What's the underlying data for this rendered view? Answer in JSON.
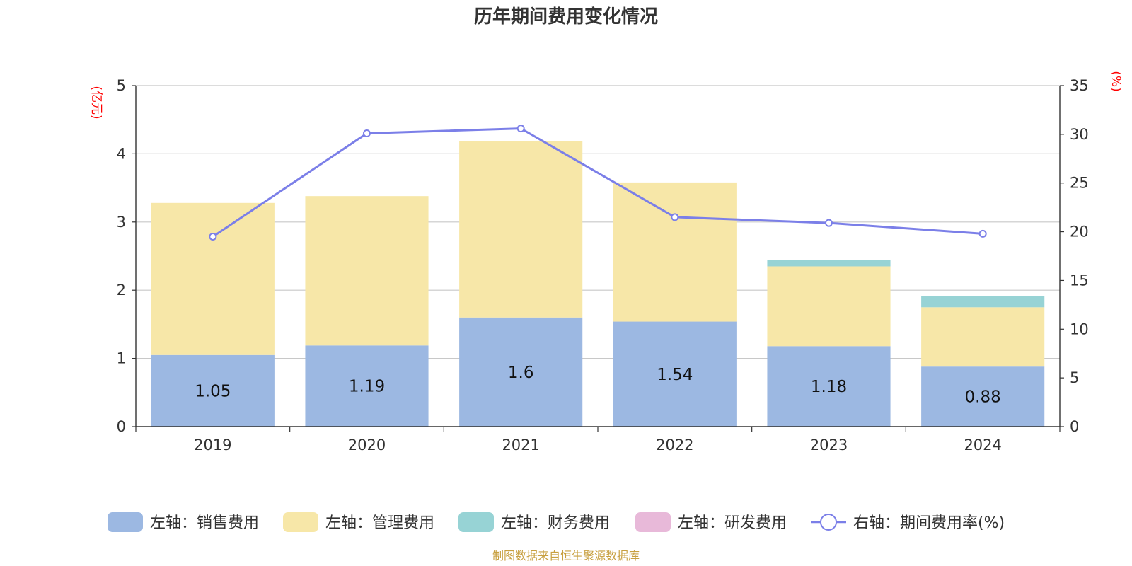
{
  "chart_data": {
    "type": "bar",
    "stacked": true,
    "title": "历年期间费用变化情况",
    "categories": [
      "2019",
      "2020",
      "2021",
      "2022",
      "2023",
      "2024"
    ],
    "left_axis": {
      "unit_label": "(亿元)",
      "ylim": [
        0,
        5
      ],
      "ticks": [
        0,
        1,
        2,
        3,
        4,
        5
      ]
    },
    "right_axis": {
      "unit_label": "(%)",
      "ylim": [
        0,
        35
      ],
      "ticks": [
        0,
        5,
        10,
        15,
        20,
        25,
        30,
        35
      ]
    },
    "grid": true,
    "legend_position": "bottom",
    "series": [
      {
        "name": "左轴：销售费用",
        "type": "bar",
        "axis": "left",
        "color": "#9cb8e2",
        "values": [
          1.05,
          1.19,
          1.6,
          1.54,
          1.18,
          0.88
        ],
        "show_labels": true
      },
      {
        "name": "左轴：管理费用",
        "type": "bar",
        "axis": "left",
        "color": "#f7e7a8",
        "values": [
          2.23,
          2.19,
          2.59,
          2.04,
          1.17,
          0.87
        ],
        "show_labels": false
      },
      {
        "name": "左轴：财务费用",
        "type": "bar",
        "axis": "left",
        "color": "#97d3d5",
        "values": [
          0,
          0,
          0,
          0,
          0.09,
          0.16
        ],
        "show_labels": false
      },
      {
        "name": "左轴：研发费用",
        "type": "bar",
        "axis": "left",
        "color": "#e8b9d9",
        "values": [
          0,
          0,
          0,
          0,
          0,
          0
        ],
        "show_labels": false
      },
      {
        "name": "右轴：期间费用率(%)",
        "type": "line",
        "axis": "right",
        "color": "#7b7fe8",
        "values": [
          19.5,
          30.1,
          30.6,
          21.5,
          20.9,
          19.8
        ],
        "show_labels": false
      }
    ],
    "source": "制图数据来自恒生聚源数据库"
  }
}
